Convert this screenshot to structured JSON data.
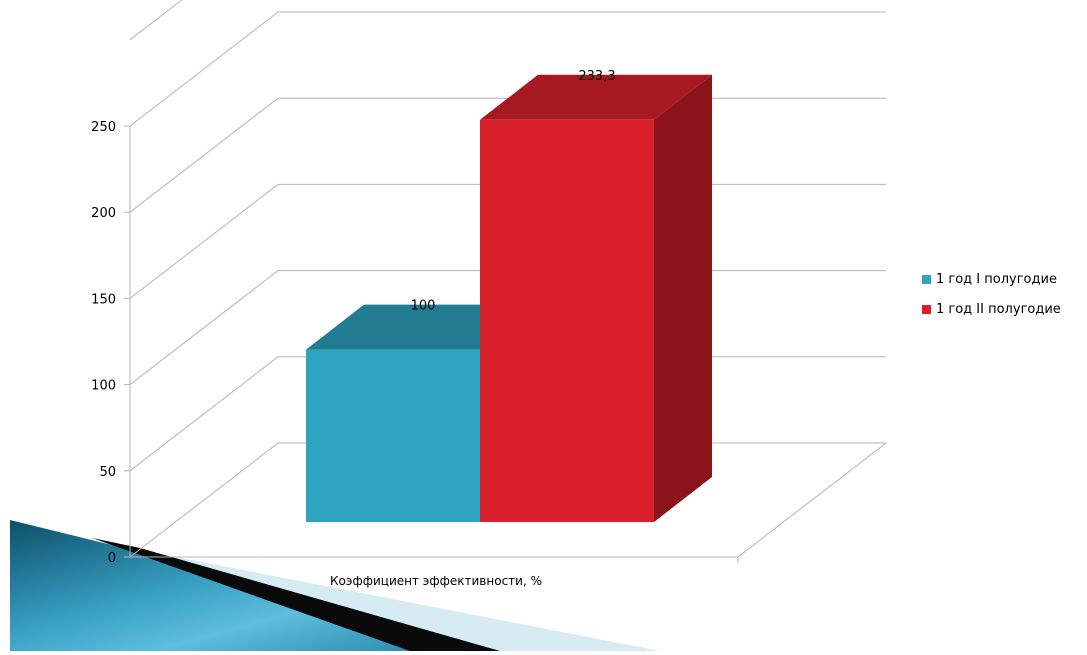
{
  "chart_data": {
    "type": "bar",
    "categories": [
      "Коэффициент эффективности, %"
    ],
    "series": [
      {
        "name": "1 год I полугодие",
        "values": [
          100
        ],
        "data_label": "100",
        "color": "#2ea4c1",
        "top_color": "#227c91",
        "side_color": "#1e6e82"
      },
      {
        "name": "1 год II полугодие",
        "values": [
          233.3
        ],
        "data_label": "233,3",
        "color": "#d91f2a",
        "top_color": "#a71820",
        "side_color": "#8b141a"
      }
    ],
    "yticks": [
      "0",
      "50",
      "100",
      "150",
      "200",
      "250"
    ],
    "ylim": [
      0,
      250
    ],
    "grid": true,
    "legend_position": "right",
    "projection": "3d"
  }
}
